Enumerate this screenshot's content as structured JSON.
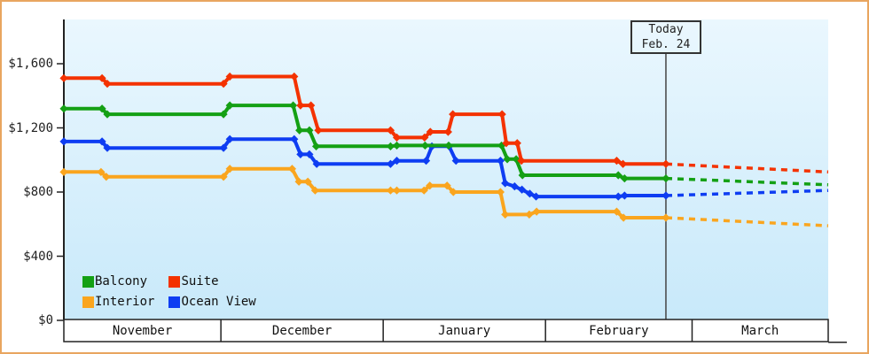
{
  "frame": {
    "border_color": "#E9A55F"
  },
  "today": {
    "line1": "Today",
    "line2": "Feb. 24",
    "day": 115
  },
  "legend": [
    {
      "label": "Balcony",
      "color": "#14A014"
    },
    {
      "label": "Suite",
      "color": "#F43200"
    },
    {
      "label": "Interior",
      "color": "#FAA51E"
    },
    {
      "label": "Ocean View",
      "color": "#0E3DF2"
    }
  ],
  "chart_data": {
    "type": "line",
    "title": "",
    "xlabel": "",
    "ylabel": "",
    "grid": false,
    "legend_position": "bottom-left",
    "background_gradient": [
      "#EAF7FE",
      "#C8E9FA"
    ],
    "y_ticks": [
      {
        "label": "$1,600",
        "value": 1600
      },
      {
        "label": "$1,200",
        "value": 1200
      },
      {
        "label": "$800",
        "value": 800
      },
      {
        "label": "$400",
        "value": 400
      },
      {
        "label": "$0",
        "value": 0
      }
    ],
    "ylim": [
      0,
      1875
    ],
    "x_axis": {
      "months": [
        "November",
        "December",
        "January",
        "February",
        "March"
      ],
      "month_start_days": [
        0,
        30,
        61,
        92,
        120
      ],
      "total_days": 146,
      "today_day": 115,
      "today_label": "Today Feb. 24"
    },
    "series": [
      {
        "name": "Interior",
        "color": "#FAA51E",
        "solid": [
          [
            0,
            925
          ],
          [
            7.1,
            925
          ],
          [
            8.1,
            895
          ],
          [
            30.5,
            895
          ],
          [
            31.7,
            945
          ],
          [
            43.6,
            945
          ],
          [
            44.9,
            865
          ],
          [
            46.6,
            865
          ],
          [
            48,
            810
          ],
          [
            62.4,
            810
          ],
          [
            63.6,
            810
          ],
          [
            68.8,
            810
          ],
          [
            69.9,
            840
          ],
          [
            73.2,
            840
          ],
          [
            74.4,
            800
          ],
          [
            83.4,
            800
          ],
          [
            84.3,
            660
          ],
          [
            88.9,
            660
          ],
          [
            90.3,
            678
          ],
          [
            105.6,
            678
          ],
          [
            106.9,
            640
          ],
          [
            115,
            640
          ]
        ],
        "dashed": [
          [
            115,
            640
          ],
          [
            146,
            590
          ]
        ]
      },
      {
        "name": "Ocean View",
        "color": "#0E3DF2",
        "solid": [
          [
            0,
            1115
          ],
          [
            7.3,
            1115
          ],
          [
            8.3,
            1075
          ],
          [
            30.5,
            1075
          ],
          [
            31.7,
            1130
          ],
          [
            44,
            1130
          ],
          [
            45.2,
            1035
          ],
          [
            46.9,
            1035
          ],
          [
            48.3,
            975
          ],
          [
            62.4,
            975
          ],
          [
            63.6,
            995
          ],
          [
            69.2,
            995
          ],
          [
            70.3,
            1085
          ],
          [
            73.6,
            1085
          ],
          [
            74.9,
            995
          ],
          [
            83.4,
            995
          ],
          [
            84.3,
            855
          ],
          [
            86.1,
            835
          ],
          [
            87.5,
            815
          ],
          [
            89,
            790
          ],
          [
            90.2,
            772
          ],
          [
            105.9,
            772
          ],
          [
            107.1,
            778
          ],
          [
            115,
            778
          ]
        ],
        "dashed": [
          [
            115,
            778
          ],
          [
            146,
            810
          ]
        ]
      },
      {
        "name": "Balcony",
        "color": "#14A014",
        "solid": [
          [
            0,
            1320
          ],
          [
            7.3,
            1320
          ],
          [
            8.3,
            1285
          ],
          [
            30.5,
            1285
          ],
          [
            31.7,
            1340
          ],
          [
            43.8,
            1340
          ],
          [
            45,
            1185
          ],
          [
            46.9,
            1185
          ],
          [
            48.2,
            1085
          ],
          [
            62.4,
            1085
          ],
          [
            63.6,
            1090
          ],
          [
            69,
            1090
          ],
          [
            73.5,
            1090
          ],
          [
            83.6,
            1090
          ],
          [
            84.7,
            1005
          ],
          [
            86.4,
            1005
          ],
          [
            87.6,
            905
          ],
          [
            105.9,
            905
          ],
          [
            107.1,
            885
          ],
          [
            115,
            885
          ]
        ],
        "dashed": [
          [
            115,
            885
          ],
          [
            146,
            845
          ]
        ]
      },
      {
        "name": "Suite",
        "color": "#F43200",
        "solid": [
          [
            0,
            1510
          ],
          [
            7.3,
            1510
          ],
          [
            8.3,
            1475
          ],
          [
            30.5,
            1475
          ],
          [
            31.7,
            1520
          ],
          [
            44,
            1520
          ],
          [
            45.2,
            1340
          ],
          [
            47.2,
            1340
          ],
          [
            48.6,
            1185
          ],
          [
            62.4,
            1185
          ],
          [
            63.6,
            1140
          ],
          [
            68.9,
            1140
          ],
          [
            70,
            1175
          ],
          [
            73.4,
            1175
          ],
          [
            74.3,
            1285
          ],
          [
            83.7,
            1285
          ],
          [
            84.5,
            1105
          ],
          [
            86.6,
            1105
          ],
          [
            87.4,
            995
          ],
          [
            105.6,
            995
          ],
          [
            106.8,
            975
          ],
          [
            115,
            975
          ]
        ],
        "dashed": [
          [
            115,
            975
          ],
          [
            146,
            925
          ]
        ]
      }
    ]
  }
}
